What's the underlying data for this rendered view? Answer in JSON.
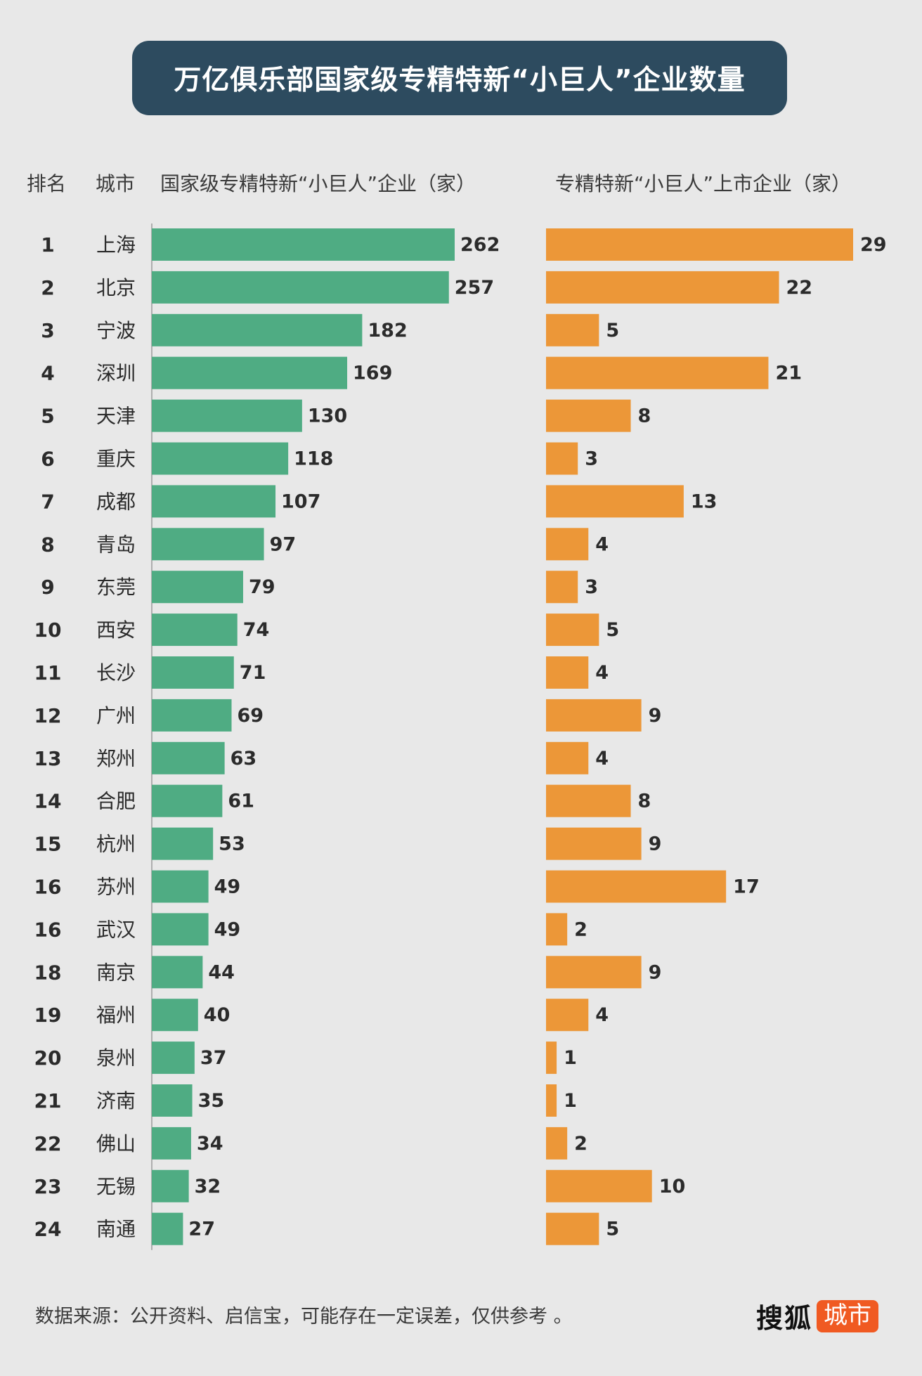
{
  "title": "万亿俱乐部国家级专精特新“小巨人”企业数量",
  "headers": {
    "rank": "排名",
    "city": "城市",
    "national": "国家级专精特新“小巨人”企业（家）",
    "listed": "专精特新“小巨人”上市企业（家）"
  },
  "colors": {
    "national": "#4fac83",
    "listed": "#ec9738",
    "title_bg": "#2d4b5f",
    "brand_tag": "#f05a22"
  },
  "chart_data": {
    "type": "bar",
    "orientation": "horizontal",
    "title": "万亿俱乐部国家级专精特新“小巨人”企业数量",
    "ranks": [
      "1",
      "2",
      "3",
      "4",
      "5",
      "6",
      "7",
      "8",
      "9",
      "10",
      "11",
      "12",
      "13",
      "14",
      "15",
      "16",
      "16",
      "18",
      "19",
      "20",
      "21",
      "22",
      "23",
      "24"
    ],
    "categories": [
      "上海",
      "北京",
      "宁波",
      "深圳",
      "天津",
      "重庆",
      "成都",
      "青岛",
      "东莞",
      "西安",
      "长沙",
      "广州",
      "郑州",
      "合肥",
      "杭州",
      "苏州",
      "武汉",
      "南京",
      "福州",
      "泉州",
      "济南",
      "佛山",
      "无锡",
      "南通"
    ],
    "series": [
      {
        "name": "国家级专精特新“小巨人”企业（家）",
        "values": [
          262,
          257,
          182,
          169,
          130,
          118,
          107,
          97,
          79,
          74,
          71,
          69,
          63,
          61,
          53,
          49,
          49,
          44,
          40,
          37,
          35,
          34,
          32,
          27
        ]
      },
      {
        "name": "专精特新“小巨人”上市企业（家）",
        "values": [
          29,
          22,
          5,
          21,
          8,
          3,
          13,
          4,
          3,
          5,
          4,
          9,
          4,
          8,
          9,
          17,
          2,
          9,
          4,
          1,
          1,
          2,
          10,
          5
        ]
      }
    ]
  },
  "footer": {
    "source": "数据来源：公开资料、启信宝，可能存在一定误差，仅供参考 。",
    "brand_name": "搜狐",
    "brand_tag": "城市"
  }
}
